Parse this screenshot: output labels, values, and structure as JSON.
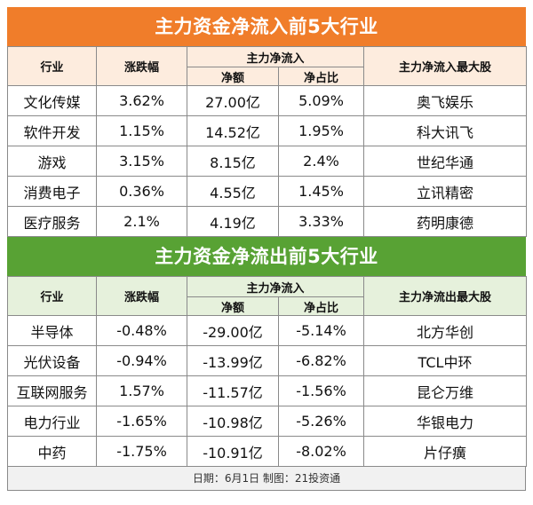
{
  "inflow": {
    "title": "主力资金净流入前5大行业",
    "headers": {
      "industry": "行业",
      "change": "涨跌幅",
      "main_flow": "主力净流入",
      "net_amount": "净额",
      "net_ratio": "净占比",
      "top_stock": "主力净流入最大股"
    },
    "rows": [
      {
        "industry": "文化传媒",
        "change": "3.62%",
        "amount": "27.00亿",
        "ratio": "5.09%",
        "stock": "奥飞娱乐"
      },
      {
        "industry": "软件开发",
        "change": "1.15%",
        "amount": "14.52亿",
        "ratio": "1.95%",
        "stock": "科大讯飞"
      },
      {
        "industry": "游戏",
        "change": "3.15%",
        "amount": "8.15亿",
        "ratio": "2.4%",
        "stock": "世纪华通"
      },
      {
        "industry": "消费电子",
        "change": "0.36%",
        "amount": "4.55亿",
        "ratio": "1.45%",
        "stock": "立讯精密"
      },
      {
        "industry": "医疗服务",
        "change": "2.1%",
        "amount": "4.19亿",
        "ratio": "3.33%",
        "stock": "药明康德"
      }
    ]
  },
  "outflow": {
    "title": "主力资金净流出前5大行业",
    "headers": {
      "industry": "行业",
      "change": "涨跌幅",
      "main_flow": "主力净流入",
      "net_amount": "净额",
      "net_ratio": "净占比",
      "top_stock": "主力净流出最大股"
    },
    "rows": [
      {
        "industry": "半导体",
        "change": "-0.48%",
        "amount": "-29.00亿",
        "ratio": "-5.14%",
        "stock": "北方华创"
      },
      {
        "industry": "光伏设备",
        "change": "-0.94%",
        "amount": "-13.99亿",
        "ratio": "-6.82%",
        "stock": "TCL中环"
      },
      {
        "industry": "互联网服务",
        "change": "1.57%",
        "amount": "-11.57亿",
        "ratio": "-1.56%",
        "stock": "昆仑万维"
      },
      {
        "industry": "电力行业",
        "change": "-1.65%",
        "amount": "-10.98亿",
        "ratio": "-5.26%",
        "stock": "华银电力"
      },
      {
        "industry": "中药",
        "change": "-1.75%",
        "amount": "-10.91亿",
        "ratio": "-8.02%",
        "stock": "片仔癀"
      }
    ]
  },
  "footer": "日期：6月1日 制图：21投资通",
  "colors": {
    "inflow_banner": "#f07d2a",
    "inflow_header": "#fdecde",
    "outflow_banner": "#58a234",
    "outflow_header": "#e6f1dc"
  }
}
